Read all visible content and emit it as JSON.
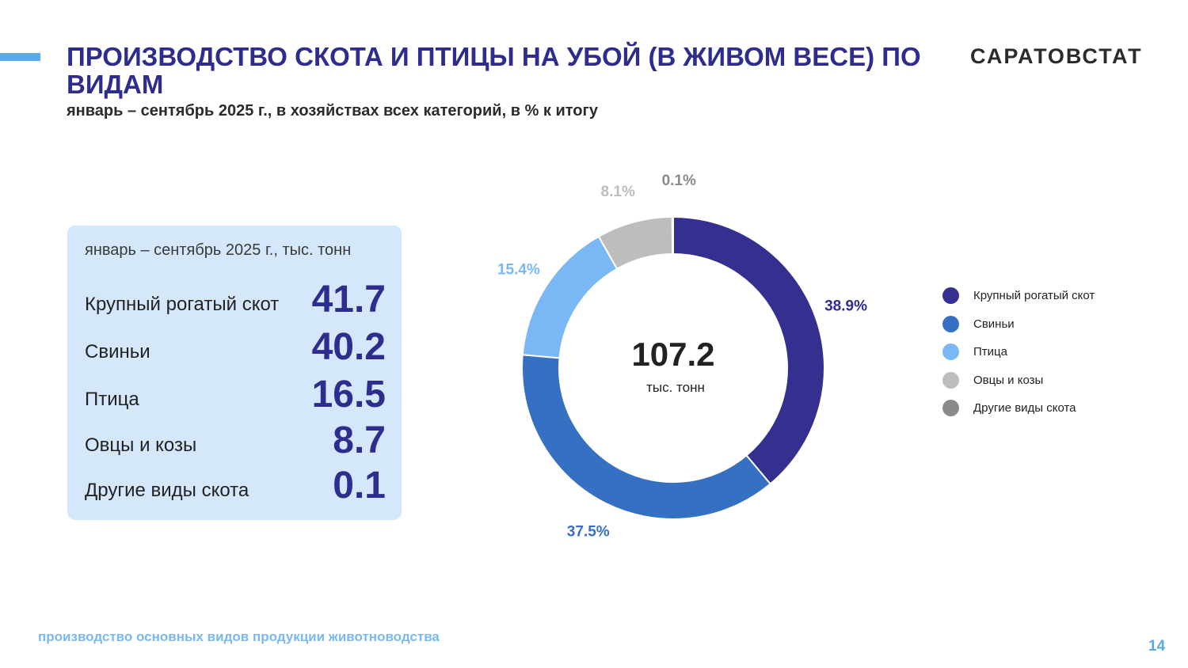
{
  "header": {
    "title": "ПРОИЗВОДСТВО СКОТА И ПТИЦЫ НА УБОЙ (В ЖИВОМ ВЕСЕ) ПО ВИДАМ",
    "subtitle": "январь – сентябрь 2025 г., в хозяйствах всех категорий, в % к итогу",
    "brand": "САРАТОВСТАТ",
    "accent_color": "#5aa9ea",
    "title_color": "#2e2c8c"
  },
  "panel": {
    "caption": "январь – сентябрь 2025 г., тыс. тонн",
    "rows": [
      {
        "label": "Крупный рогатый скот",
        "value": "41.7"
      },
      {
        "label": "Свиньи",
        "value": "40.2"
      },
      {
        "label": "Птица",
        "value": "16.5"
      },
      {
        "label": "Овцы и козы",
        "value": "8.7"
      },
      {
        "label": "Другие виды скота",
        "value": "0.1"
      }
    ],
    "background": "#d4e7fb"
  },
  "chart_data": {
    "type": "pie",
    "variant": "donut",
    "categories": [
      "Крупный рогатый скот",
      "Свиньи",
      "Птица",
      "Овцы и козы",
      "Другие виды скота"
    ],
    "values": [
      38.9,
      37.5,
      15.4,
      8.1,
      0.1
    ],
    "value_labels": [
      "38.9%",
      "37.5%",
      "15.4%",
      "8.1%",
      "0.1%"
    ],
    "colors": [
      "#352f8f",
      "#3570c3",
      "#7ab8f5",
      "#bdbdbd",
      "#8a8a8a"
    ],
    "center_value": "107.2",
    "center_unit": "тыс. тонн",
    "legend_position": "right"
  },
  "footer": {
    "text": "производство основных видов продукции животноводства",
    "page_number": "14"
  }
}
